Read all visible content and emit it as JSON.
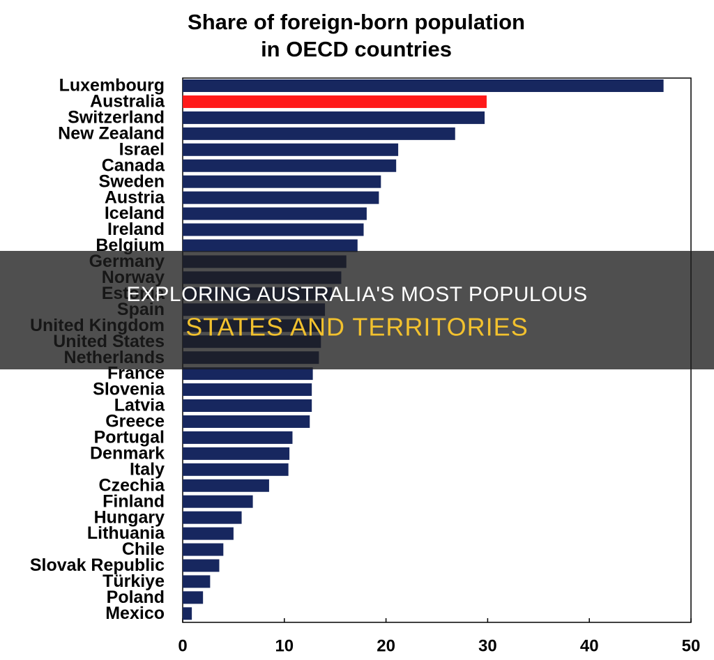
{
  "chart_data": {
    "type": "hbar",
    "title": [
      "Share of foreign-born population",
      "in OECD countries"
    ],
    "categories": [
      "Luxembourg",
      "Australia",
      "Switzerland",
      "New Zealand",
      "Israel",
      "Canada",
      "Sweden",
      "Austria",
      "Iceland",
      "Ireland",
      "Belgium",
      "Germany",
      "Norway",
      "Estonia",
      "Spain",
      "United Kingdom",
      "United States",
      "Netherlands",
      "France",
      "Slovenia",
      "Latvia",
      "Greece",
      "Portugal",
      "Denmark",
      "Italy",
      "Czechia",
      "Finland",
      "Hungary",
      "Lithuania",
      "Chile",
      "Slovak Republic",
      "Türkiye",
      "Poland",
      "Mexico"
    ],
    "values": [
      47.3,
      29.9,
      29.7,
      26.8,
      21.2,
      21.0,
      19.5,
      19.3,
      18.1,
      17.8,
      17.2,
      16.1,
      15.6,
      14.7,
      14.0,
      13.7,
      13.6,
      13.4,
      12.8,
      12.7,
      12.7,
      12.5,
      10.8,
      10.5,
      10.4,
      8.5,
      6.9,
      5.8,
      5.0,
      4.0,
      3.6,
      2.7,
      2.0,
      0.9
    ],
    "colors": [
      "#17275f",
      "#ff1a1a",
      "#17275f",
      "#17275f",
      "#17275f",
      "#17275f",
      "#17275f",
      "#17275f",
      "#17275f",
      "#17275f",
      "#17275f",
      "#17275f",
      "#17275f",
      "#17275f",
      "#17275f",
      "#17275f",
      "#17275f",
      "#17275f",
      "#17275f",
      "#17275f",
      "#17275f",
      "#17275f",
      "#17275f",
      "#17275f",
      "#17275f",
      "#17275f",
      "#17275f",
      "#17275f",
      "#17275f",
      "#17275f",
      "#17275f",
      "#17275f",
      "#17275f",
      "#17275f"
    ],
    "xlim": [
      0,
      50
    ],
    "xticks": [
      0,
      10,
      20,
      30,
      40,
      50
    ],
    "grid": false
  },
  "overlay": {
    "lines": [
      "EXPLORING AUSTRALIA'S MOST POPULOUS",
      "STATES AND TERRITORIES"
    ]
  }
}
